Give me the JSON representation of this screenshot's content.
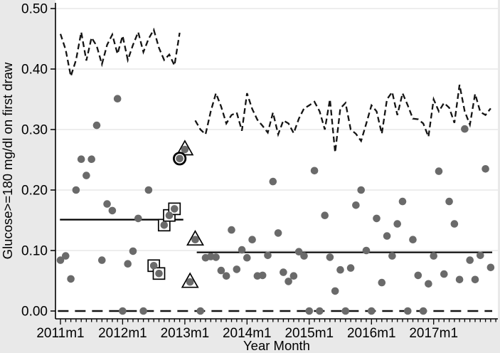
{
  "chart_data": {
    "type": "scatter",
    "title": "",
    "xlabel": "Year Month",
    "ylabel": "Glucose>=180 mg/dl on first draw",
    "ylim": [
      0.0,
      0.5
    ],
    "grid": true,
    "y_ticks": [
      {
        "value": 0.0,
        "label": "0.00"
      },
      {
        "value": 0.1,
        "label": "0.10"
      },
      {
        "value": 0.2,
        "label": "0.20"
      },
      {
        "value": 0.3,
        "label": "0.30"
      },
      {
        "value": 0.4,
        "label": "0.40"
      },
      {
        "value": 0.5,
        "label": "0.50"
      }
    ],
    "x_ticks": [
      {
        "month": 0,
        "label": "2011m1"
      },
      {
        "month": 12,
        "label": "2012m1"
      },
      {
        "month": 24,
        "label": "2013m1"
      },
      {
        "month": 36,
        "label": "2014m1"
      },
      {
        "month": 48,
        "label": "2015m1"
      },
      {
        "month": 60,
        "label": "2016m1"
      },
      {
        "month": 72,
        "label": "2017m1"
      }
    ],
    "minor_tick_months": "monthly",
    "x_range_months": [
      0,
      84
    ],
    "first_month": "2011m1",
    "last_month": "2017m12",
    "points": {
      "start_month": 0,
      "values": [
        0.084,
        0.091,
        0.053,
        0.2,
        0.251,
        0.224,
        0.251,
        0.307,
        0.084,
        0.177,
        0.166,
        0.351,
        0.0,
        0.078,
        0.099,
        0.153,
        0.0,
        0.2,
        0.075,
        0.062,
        0.142,
        0.158,
        0.169,
        0.252,
        0.267,
        0.048,
        0.118,
        0.0,
        0.088,
        0.09,
        0.089,
        0.067,
        0.058,
        0.134,
        0.069,
        0.101,
        0.088,
        0.118,
        0.058,
        0.059,
        0.092,
        0.214,
        0.129,
        0.064,
        0.049,
        0.058,
        0.098,
        0.091,
        0.0,
        0.232,
        0.0,
        0.158,
        0.089,
        0.033,
        0.068,
        0.0,
        0.071,
        0.175,
        0.2,
        0.1,
        0.0,
        0.153,
        0.047,
        0.124,
        0.091,
        0.144,
        0.181,
        0.0,
        0.118,
        0.059,
        0.0,
        0.045,
        0.091,
        0.231,
        0.061,
        0.181,
        0.144,
        0.052,
        0.301,
        0.084,
        0.052,
        0.092,
        0.235,
        0.072
      ]
    },
    "highlights": {
      "square_months": [
        18,
        19,
        20,
        21,
        22
      ],
      "circled_months": [
        23
      ],
      "triangle_months": [
        24,
        25,
        26
      ]
    },
    "center_lines": [
      {
        "from_month": -0.1,
        "to_month": 23.7,
        "value": 0.151
      },
      {
        "from_month": 26.3,
        "to_month": 83.3,
        "value": 0.097
      }
    ],
    "lower_limit": {
      "from_month": -0.5,
      "to_month": 83.3,
      "value": 0.0
    },
    "upper_limits": [
      {
        "start_month": 0,
        "values": [
          0.458,
          0.432,
          0.388,
          0.415,
          0.461,
          0.414,
          0.452,
          0.438,
          0.408,
          0.44,
          0.457,
          0.425,
          0.455,
          0.415,
          0.44,
          0.461,
          0.428,
          0.45,
          0.465,
          0.435,
          0.415,
          0.424,
          0.406,
          0.46
        ]
      },
      {
        "start_month": 26,
        "values": [
          0.315,
          0.3,
          0.292,
          0.33,
          0.36,
          0.338,
          0.31,
          0.324,
          0.328,
          0.298,
          0.36,
          0.334,
          0.316,
          0.306,
          0.295,
          0.328,
          0.292,
          0.315,
          0.31,
          0.294,
          0.318,
          0.335,
          0.34,
          0.346,
          0.33,
          0.3,
          0.35,
          0.262,
          0.335,
          0.344,
          0.3,
          0.293,
          0.281,
          0.31,
          0.34,
          0.33,
          0.293,
          0.35,
          0.362,
          0.324,
          0.36,
          0.34,
          0.318,
          0.317,
          0.31,
          0.288,
          0.35,
          0.33,
          0.344,
          0.336,
          0.311,
          0.374,
          0.33,
          0.308,
          0.359,
          0.329,
          0.324,
          0.335
        ]
      }
    ],
    "colors": {
      "marker": "#6a6a6a",
      "line": "#141414",
      "grid": "#e2e2e2",
      "plot_bg": "#ffffff",
      "outer_bg": "#e9e9e9"
    },
    "legend": null
  }
}
